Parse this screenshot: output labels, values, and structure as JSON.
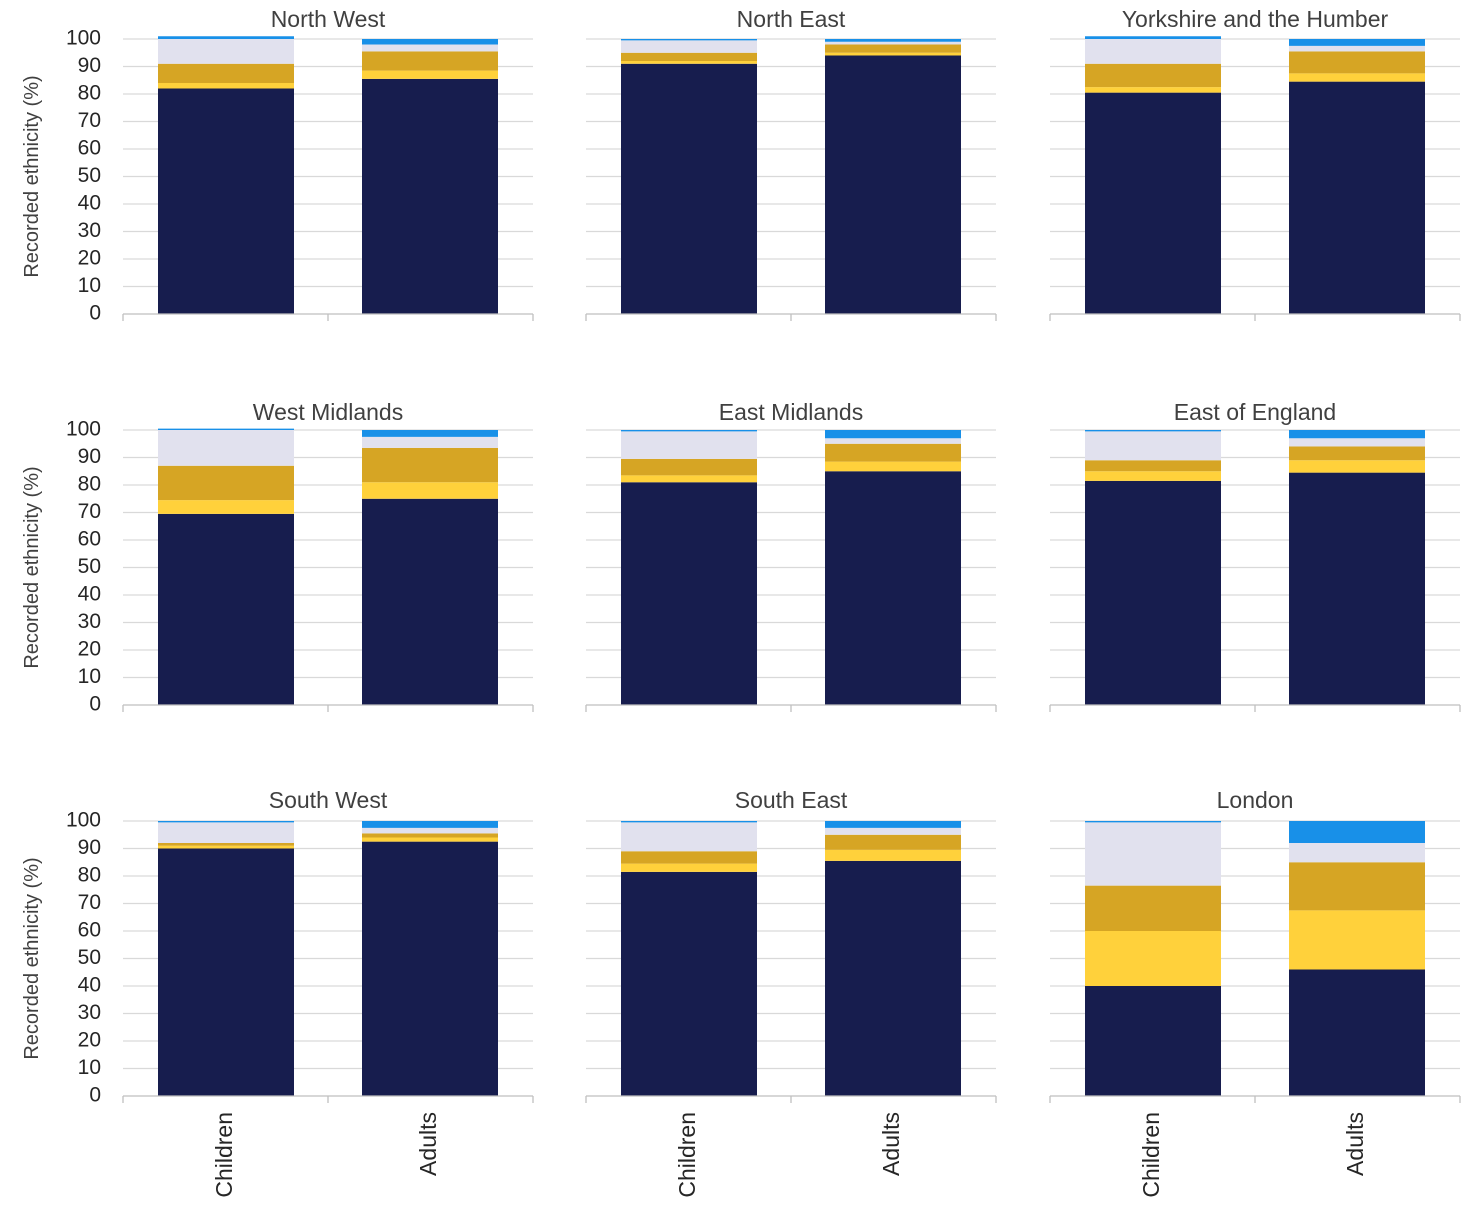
{
  "colors": {
    "segments": [
      "#171d4e",
      "#ffd13b",
      "#d6a524",
      "#e1e1ee",
      "#1890e8"
    ],
    "gridline": "#d9d9d9",
    "axis": "#bfbfbf",
    "title_text": "#404040",
    "tick_text": "#262626"
  },
  "y_axis": {
    "label": "Recorded ethnicity (%)",
    "ticks": [
      "0",
      "10",
      "20",
      "30",
      "40",
      "50",
      "60",
      "70",
      "80",
      "90",
      "100"
    ]
  },
  "chart_data": [
    {
      "type": "bar",
      "stacked": true,
      "title": "North West",
      "categories": [
        "Children",
        "Adults"
      ],
      "series": [
        {
          "values": [
            82,
            85.5
          ]
        },
        {
          "values": [
            2,
            3
          ]
        },
        {
          "values": [
            7,
            7
          ]
        },
        {
          "values": [
            9,
            2.5
          ]
        },
        {
          "values": [
            1,
            2
          ]
        }
      ],
      "ylim": [
        0,
        100
      ],
      "grid": true
    },
    {
      "type": "bar",
      "stacked": true,
      "title": "North East",
      "categories": [
        "Children",
        "Adults"
      ],
      "series": [
        {
          "values": [
            91,
            94
          ]
        },
        {
          "values": [
            1,
            1
          ]
        },
        {
          "values": [
            3,
            3
          ]
        },
        {
          "values": [
            4.5,
            1
          ]
        },
        {
          "values": [
            0.5,
            1
          ]
        }
      ],
      "ylim": [
        0,
        100
      ],
      "grid": true
    },
    {
      "type": "bar",
      "stacked": true,
      "title": "Yorkshire and the Humber",
      "categories": [
        "Children",
        "Adults"
      ],
      "series": [
        {
          "values": [
            80.5,
            84.5
          ]
        },
        {
          "values": [
            2,
            3
          ]
        },
        {
          "values": [
            8.5,
            8
          ]
        },
        {
          "values": [
            9,
            2
          ]
        },
        {
          "values": [
            1,
            2.5
          ]
        }
      ],
      "ylim": [
        0,
        100
      ],
      "grid": true
    },
    {
      "type": "bar",
      "stacked": true,
      "title": "West Midlands",
      "categories": [
        "Children",
        "Adults"
      ],
      "series": [
        {
          "values": [
            69.5,
            75
          ]
        },
        {
          "values": [
            5,
            6
          ]
        },
        {
          "values": [
            12.5,
            12.5
          ]
        },
        {
          "values": [
            13,
            4
          ]
        },
        {
          "values": [
            0.5,
            2.5
          ]
        }
      ],
      "ylim": [
        0,
        100
      ],
      "grid": true
    },
    {
      "type": "bar",
      "stacked": true,
      "title": "East Midlands",
      "categories": [
        "Children",
        "Adults"
      ],
      "series": [
        {
          "values": [
            81,
            85
          ]
        },
        {
          "values": [
            2.5,
            3.5
          ]
        },
        {
          "values": [
            6,
            6.5
          ]
        },
        {
          "values": [
            10,
            2
          ]
        },
        {
          "values": [
            0.5,
            3
          ]
        }
      ],
      "ylim": [
        0,
        100
      ],
      "grid": true
    },
    {
      "type": "bar",
      "stacked": true,
      "title": "East of England",
      "categories": [
        "Children",
        "Adults"
      ],
      "series": [
        {
          "values": [
            81.5,
            84.5
          ]
        },
        {
          "values": [
            3.5,
            4.5
          ]
        },
        {
          "values": [
            4,
            5
          ]
        },
        {
          "values": [
            10.5,
            3
          ]
        },
        {
          "values": [
            0.5,
            3
          ]
        }
      ],
      "ylim": [
        0,
        100
      ],
      "grid": true
    },
    {
      "type": "bar",
      "stacked": true,
      "title": "South West",
      "categories": [
        "Children",
        "Adults"
      ],
      "series": [
        {
          "values": [
            90,
            92.5
          ]
        },
        {
          "values": [
            1,
            1.5
          ]
        },
        {
          "values": [
            1,
            1.5
          ]
        },
        {
          "values": [
            7.5,
            2
          ]
        },
        {
          "values": [
            0.5,
            2.5
          ]
        }
      ],
      "ylim": [
        0,
        100
      ],
      "grid": true
    },
    {
      "type": "bar",
      "stacked": true,
      "title": "South East",
      "categories": [
        "Children",
        "Adults"
      ],
      "series": [
        {
          "values": [
            81.5,
            85.5
          ]
        },
        {
          "values": [
            3,
            4
          ]
        },
        {
          "values": [
            4.5,
            5.5
          ]
        },
        {
          "values": [
            10.5,
            2.5
          ]
        },
        {
          "values": [
            0.5,
            2.5
          ]
        }
      ],
      "ylim": [
        0,
        100
      ],
      "grid": true
    },
    {
      "type": "bar",
      "stacked": true,
      "title": "London",
      "categories": [
        "Children",
        "Adults"
      ],
      "series": [
        {
          "values": [
            40,
            46
          ]
        },
        {
          "values": [
            20,
            21.5
          ]
        },
        {
          "values": [
            16.5,
            17.5
          ]
        },
        {
          "values": [
            23,
            7
          ]
        },
        {
          "values": [
            0.5,
            8
          ]
        }
      ],
      "ylim": [
        0,
        100
      ],
      "grid": true
    }
  ]
}
